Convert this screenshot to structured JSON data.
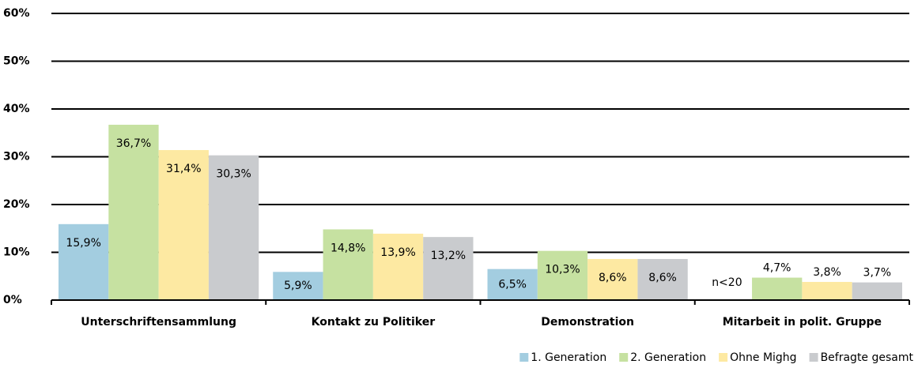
{
  "chart_data": {
    "type": "bar",
    "categories": [
      "Unterschriftensammlung",
      "Kontakt zu Politiker",
      "Demonstration",
      "Mitarbeit in polit. Gruppe"
    ],
    "series": [
      {
        "name": "1. Generation",
        "color": "#a3cde0",
        "values": [
          15.9,
          5.9,
          6.5,
          null
        ],
        "value_labels": [
          "15,9%",
          "5,9%",
          "6,5%",
          "n<20"
        ]
      },
      {
        "name": "2. Generation",
        "color": "#c6e1a1",
        "values": [
          36.7,
          14.8,
          10.3,
          4.7
        ],
        "value_labels": [
          "36,7%",
          "14,8%",
          "10,3%",
          "4,7%"
        ]
      },
      {
        "name": "Ohne Mighg",
        "color": "#fde9a2",
        "values": [
          31.4,
          13.9,
          8.6,
          3.8
        ],
        "value_labels": [
          "31,4%",
          "13,9%",
          "8,6%",
          "3,8%"
        ]
      },
      {
        "name": "Befragte gesamt",
        "color": "#c9cbce",
        "values": [
          30.3,
          13.2,
          8.6,
          3.7
        ],
        "value_labels": [
          "30,3%",
          "13,2%",
          "8,6%",
          "3,7%"
        ]
      }
    ],
    "ylim": [
      0,
      60
    ],
    "yticks": [
      {
        "value": 0,
        "label": "0%"
      },
      {
        "value": 10,
        "label": "10%"
      },
      {
        "value": 20,
        "label": "20%"
      },
      {
        "value": 30,
        "label": "30%"
      },
      {
        "value": 40,
        "label": "40%"
      },
      {
        "value": 50,
        "label": "50%"
      },
      {
        "value": 60,
        "label": "60%"
      }
    ],
    "grid": true,
    "legend": "bottom-right"
  }
}
